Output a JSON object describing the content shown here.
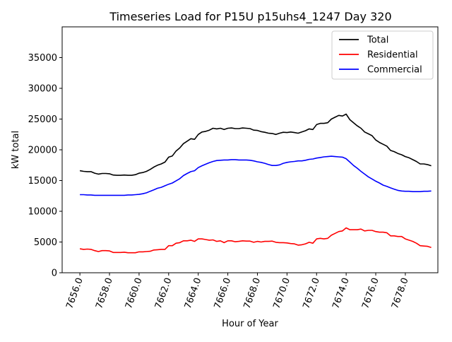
{
  "chart_data": {
    "type": "line",
    "title": "Timeseries Load for P15U p15uhs4_1247  Day 320",
    "xlabel": "Hour of Year",
    "ylabel": "kW total",
    "xlim": [
      7654.8,
      7680.2
    ],
    "ylim": [
      0,
      40000
    ],
    "xticks": [
      7656,
      7658,
      7660,
      7662,
      7664,
      7666,
      7668,
      7670,
      7672,
      7674,
      7676,
      7678
    ],
    "xtick_labels": [
      "7656.0",
      "7658.0",
      "7660.0",
      "7662.0",
      "7664.0",
      "7666.0",
      "7668.0",
      "7670.0",
      "7672.0",
      "7674.0",
      "7676.0",
      "7678.0"
    ],
    "yticks": [
      0,
      5000,
      10000,
      15000,
      20000,
      25000,
      30000,
      35000
    ],
    "ytick_labels": [
      "0",
      "5000",
      "10000",
      "15000",
      "20000",
      "25000",
      "30000",
      "35000"
    ],
    "legend_position": "top-right",
    "x": [
      7656.0,
      7656.25,
      7656.5,
      7656.75,
      7657.0,
      7657.25,
      7657.5,
      7657.75,
      7658.0,
      7658.25,
      7658.5,
      7658.75,
      7659.0,
      7659.25,
      7659.5,
      7659.75,
      7660.0,
      7660.25,
      7660.5,
      7660.75,
      7661.0,
      7661.25,
      7661.5,
      7661.75,
      7662.0,
      7662.25,
      7662.5,
      7662.75,
      7663.0,
      7663.25,
      7663.5,
      7663.75,
      7664.0,
      7664.25,
      7664.5,
      7664.75,
      7665.0,
      7665.25,
      7665.5,
      7665.75,
      7666.0,
      7666.25,
      7666.5,
      7666.75,
      7667.0,
      7667.25,
      7667.5,
      7667.75,
      7668.0,
      7668.25,
      7668.5,
      7668.75,
      7669.0,
      7669.25,
      7669.5,
      7669.75,
      7670.0,
      7670.25,
      7670.5,
      7670.75,
      7671.0,
      7671.25,
      7671.5,
      7671.75,
      7672.0,
      7672.25,
      7672.5,
      7672.75,
      7673.0,
      7673.25,
      7673.5,
      7673.75,
      7674.0,
      7674.25,
      7674.5,
      7674.75,
      7675.0,
      7675.25,
      7675.5,
      7675.75,
      7676.0,
      7676.25,
      7676.5,
      7676.75,
      7677.0,
      7677.25,
      7677.5,
      7677.75,
      7678.0,
      7678.25,
      7678.5,
      7678.75,
      7679.0,
      7679.25,
      7679.5,
      7679.75
    ],
    "series": [
      {
        "name": "Total",
        "color": "#000000",
        "values": [
          16600,
          16500,
          16450,
          16450,
          16200,
          16050,
          16150,
          16150,
          16100,
          15900,
          15850,
          15850,
          15900,
          15850,
          15850,
          15950,
          16200,
          16300,
          16500,
          16800,
          17200,
          17500,
          17700,
          18000,
          18800,
          19000,
          19800,
          20300,
          21000,
          21400,
          21800,
          21700,
          22500,
          22900,
          23000,
          23200,
          23500,
          23400,
          23500,
          23300,
          23500,
          23550,
          23450,
          23450,
          23550,
          23500,
          23450,
          23200,
          23150,
          22950,
          22850,
          22700,
          22650,
          22500,
          22700,
          22850,
          22800,
          22900,
          22800,
          22700,
          22900,
          23100,
          23400,
          23300,
          24100,
          24300,
          24300,
          24400,
          25000,
          25300,
          25600,
          25500,
          25800,
          24900,
          24400,
          23900,
          23500,
          22900,
          22600,
          22300,
          21600,
          21200,
          20900,
          20600,
          19900,
          19700,
          19400,
          19200,
          18900,
          18700,
          18400,
          18100,
          17700,
          17700,
          17600,
          17400
        ]
      },
      {
        "name": "Residential",
        "color": "#ff0000",
        "values": [
          3900,
          3800,
          3850,
          3800,
          3600,
          3450,
          3600,
          3600,
          3550,
          3300,
          3300,
          3300,
          3350,
          3250,
          3250,
          3250,
          3400,
          3400,
          3450,
          3500,
          3700,
          3750,
          3800,
          3800,
          4400,
          4400,
          4800,
          4900,
          5200,
          5200,
          5300,
          5100,
          5500,
          5500,
          5400,
          5300,
          5350,
          5100,
          5200,
          4900,
          5200,
          5200,
          5050,
          5100,
          5200,
          5150,
          5150,
          4950,
          5100,
          5000,
          5100,
          5100,
          5150,
          4950,
          4900,
          4900,
          4850,
          4750,
          4700,
          4500,
          4550,
          4700,
          4950,
          4800,
          5500,
          5600,
          5500,
          5600,
          6100,
          6400,
          6700,
          6800,
          7300,
          7000,
          7000,
          7000,
          7100,
          6800,
          6900,
          6900,
          6700,
          6600,
          6600,
          6500,
          6000,
          6000,
          5900,
          5900,
          5500,
          5300,
          5100,
          4800,
          4400,
          4350,
          4300,
          4100
        ]
      },
      {
        "name": "Commercial",
        "color": "#0000ff",
        "values": [
          12700,
          12700,
          12650,
          12650,
          12600,
          12600,
          12600,
          12600,
          12600,
          12600,
          12600,
          12600,
          12600,
          12650,
          12650,
          12700,
          12750,
          12850,
          13000,
          13250,
          13500,
          13750,
          13900,
          14150,
          14400,
          14600,
          14950,
          15300,
          15800,
          16150,
          16450,
          16600,
          17100,
          17400,
          17650,
          17900,
          18100,
          18250,
          18300,
          18350,
          18350,
          18400,
          18400,
          18350,
          18350,
          18350,
          18300,
          18200,
          18050,
          17950,
          17800,
          17600,
          17450,
          17450,
          17550,
          17800,
          17950,
          18050,
          18100,
          18200,
          18200,
          18300,
          18450,
          18500,
          18650,
          18750,
          18850,
          18900,
          18950,
          18900,
          18850,
          18800,
          18550,
          18000,
          17450,
          17000,
          16500,
          16050,
          15600,
          15250,
          14900,
          14600,
          14250,
          14050,
          13800,
          13600,
          13400,
          13300,
          13250,
          13250,
          13200,
          13200,
          13200,
          13250,
          13250,
          13300
        ]
      }
    ]
  }
}
